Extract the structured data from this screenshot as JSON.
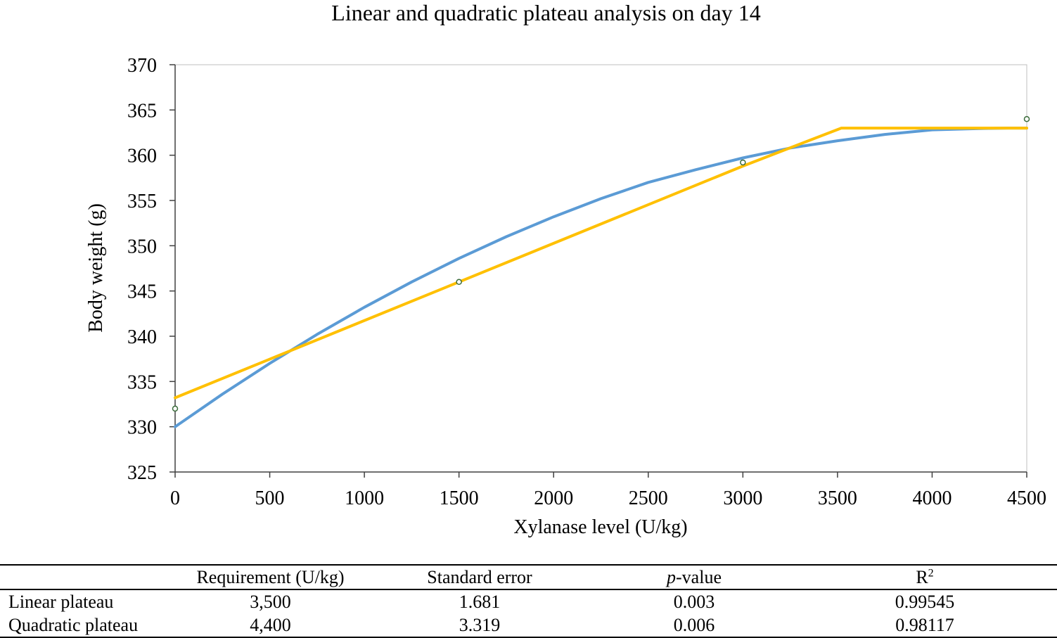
{
  "chart_data": {
    "type": "line",
    "title": "Linear and quadratic plateau analysis on day 14",
    "xlabel": "Xylanase level (U/kg)",
    "ylabel": "Body weight (g)",
    "xlim": [
      0,
      4500
    ],
    "ylim": [
      325,
      370
    ],
    "xticks": [
      0,
      500,
      1000,
      1500,
      2000,
      2500,
      3000,
      3500,
      4000,
      4500
    ],
    "yticks": [
      325,
      330,
      335,
      340,
      345,
      350,
      355,
      360,
      365,
      370
    ],
    "grid": false,
    "observed_points": [
      {
        "x": 0,
        "y": 332
      },
      {
        "x": 1500,
        "y": 346
      },
      {
        "x": 3000,
        "y": 359.2
      },
      {
        "x": 4500,
        "y": 364
      }
    ],
    "series": [
      {
        "color": "#5b9bd5",
        "x": [
          0,
          250,
          500,
          750,
          1000,
          1250,
          1500,
          1750,
          2000,
          2250,
          2500,
          2750,
          3000,
          3250,
          3500,
          3750,
          4000,
          4250,
          4400,
          4500
        ],
        "y": [
          330,
          333.6,
          337.0,
          340.2,
          343.2,
          346.0,
          348.6,
          351.0,
          353.2,
          355.2,
          357.0,
          358.4,
          359.7,
          360.8,
          361.6,
          362.3,
          362.8,
          362.95,
          363,
          363
        ]
      },
      {
        "color": "#ffc000",
        "x": [
          0,
          1500,
          3000,
          3520,
          4500
        ],
        "y": [
          333.2,
          346,
          358.8,
          363,
          363
        ]
      }
    ],
    "point_style": {
      "fill": "#ffffff",
      "stroke": "#3a6b3a"
    }
  },
  "table": {
    "headers": {
      "requirement": "Requirement (U/kg)",
      "standard_error": "Standard error",
      "p_value_italic": "p",
      "p_value_rest": "-value",
      "r2_base": "R",
      "r2_sup": "2"
    },
    "rows": [
      {
        "model": "Linear plateau",
        "requirement": "3,500",
        "standard_error": "1.681",
        "p_value": "0.003",
        "r2": "0.99545"
      },
      {
        "model": "Quadratic plateau",
        "requirement": "4,400",
        "standard_error": "3.319",
        "p_value": "0.006",
        "r2": "0.98117"
      }
    ]
  }
}
